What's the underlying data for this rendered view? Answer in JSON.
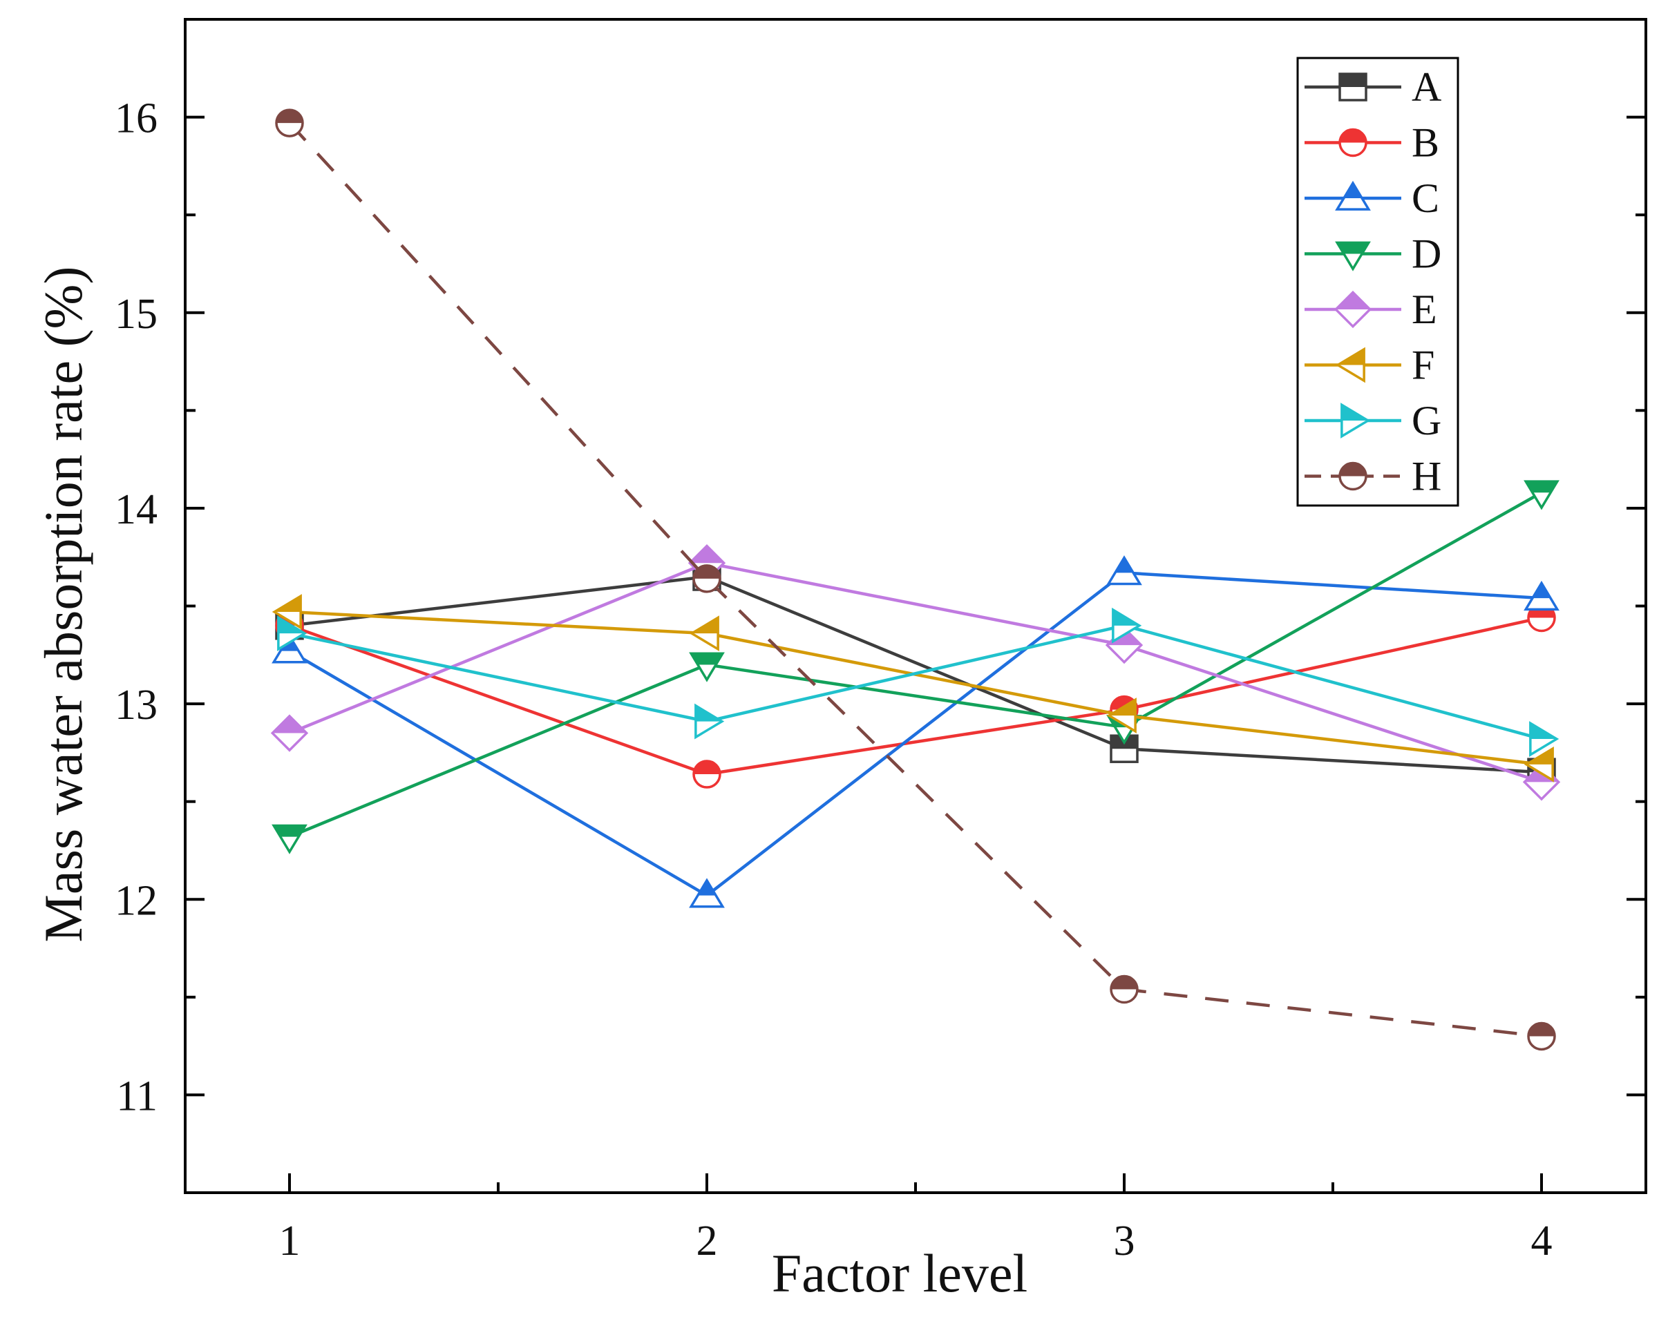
{
  "chart_data": {
    "type": "line",
    "title": "",
    "xlabel": "Factor level",
    "ylabel": "Mass water absorption rate (%)",
    "x": [
      1,
      2,
      3,
      4
    ],
    "xlim": [
      0.75,
      4.25
    ],
    "ylim": [
      10.5,
      16.5
    ],
    "xticks": [
      "1",
      "2",
      "3",
      "4"
    ],
    "yticks": [
      "11",
      "12",
      "13",
      "14",
      "15",
      "16"
    ],
    "legend_position": "top-right",
    "series": [
      {
        "name": "A",
        "color": "#3d3d3d",
        "marker": "square",
        "dashed": false,
        "values": [
          13.4,
          13.65,
          12.77,
          12.65
        ]
      },
      {
        "name": "B",
        "color": "#ee3333",
        "marker": "circle",
        "dashed": false,
        "values": [
          13.4,
          12.64,
          12.97,
          13.44
        ]
      },
      {
        "name": "C",
        "color": "#1f6fde",
        "marker": "triangle-up",
        "dashed": false,
        "values": [
          13.27,
          12.02,
          13.67,
          13.54
        ]
      },
      {
        "name": "D",
        "color": "#12a15a",
        "marker": "triangle-down",
        "dashed": false,
        "values": [
          12.32,
          13.2,
          12.88,
          14.08
        ]
      },
      {
        "name": "E",
        "color": "#c07ae0",
        "marker": "diamond",
        "dashed": false,
        "values": [
          12.85,
          13.72,
          13.3,
          12.6
        ]
      },
      {
        "name": "F",
        "color": "#d49a09",
        "marker": "triangle-left",
        "dashed": false,
        "values": [
          13.47,
          13.36,
          12.94,
          12.69
        ]
      },
      {
        "name": "G",
        "color": "#20c1cc",
        "marker": "triangle-right",
        "dashed": false,
        "values": [
          13.36,
          12.91,
          13.4,
          12.82
        ]
      },
      {
        "name": "H",
        "color": "#7d4742",
        "marker": "circle",
        "dashed": true,
        "values": [
          15.97,
          13.64,
          11.54,
          11.3
        ]
      }
    ]
  }
}
